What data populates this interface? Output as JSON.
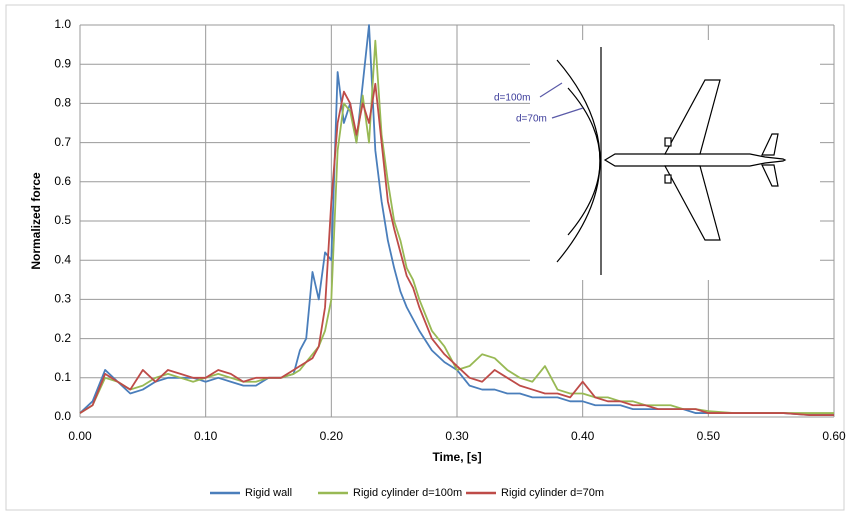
{
  "chart_data": {
    "type": "line",
    "xlabel": "Time, [s]",
    "ylabel": "Normalized force",
    "grid": true,
    "legend": "bottom",
    "annotations": [
      "d=100m",
      "d=70m"
    ],
    "xlim": [
      0,
      0.6
    ],
    "ylim": [
      0,
      1
    ],
    "xticks": [
      {
        "value": 0,
        "label": "0.00"
      },
      {
        "value": 0.1,
        "label": "0.10"
      },
      {
        "value": 0.2,
        "label": "0.20"
      },
      {
        "value": 0.3,
        "label": "0.30"
      },
      {
        "value": 0.4,
        "label": "0.40"
      },
      {
        "value": 0.5,
        "label": "0.50"
      },
      {
        "value": 0.6,
        "label": "0.60"
      }
    ],
    "yticks": [
      {
        "value": 0,
        "label": "0.0"
      },
      {
        "value": 0.1,
        "label": "0.1"
      },
      {
        "value": 0.2,
        "label": "0.2"
      },
      {
        "value": 0.3,
        "label": "0.3"
      },
      {
        "value": 0.4,
        "label": "0.4"
      },
      {
        "value": 0.5,
        "label": "0.5"
      },
      {
        "value": 0.6,
        "label": "0.6"
      },
      {
        "value": 0.7,
        "label": "0.7"
      },
      {
        "value": 0.8,
        "label": "0.8"
      },
      {
        "value": 0.9,
        "label": "0.9"
      },
      {
        "value": 1,
        "label": "1.0"
      }
    ],
    "x": [
      0,
      0.01,
      0.02,
      0.03,
      0.04,
      0.05,
      0.06,
      0.07,
      0.08,
      0.09,
      0.1,
      0.11,
      0.12,
      0.13,
      0.14,
      0.15,
      0.16,
      0.17,
      0.175,
      0.18,
      0.185,
      0.19,
      0.195,
      0.2,
      0.205,
      0.21,
      0.215,
      0.22,
      0.225,
      0.23,
      0.235,
      0.24,
      0.245,
      0.25,
      0.255,
      0.26,
      0.265,
      0.27,
      0.28,
      0.29,
      0.3,
      0.31,
      0.32,
      0.33,
      0.34,
      0.35,
      0.36,
      0.37,
      0.38,
      0.39,
      0.4,
      0.41,
      0.42,
      0.43,
      0.44,
      0.45,
      0.46,
      0.47,
      0.48,
      0.49,
      0.5,
      0.52,
      0.54,
      0.56,
      0.58,
      0.6
    ],
    "series": [
      {
        "name": "Rigid wall",
        "color": "#4a7ebb",
        "values": [
          0.01,
          0.04,
          0.12,
          0.09,
          0.06,
          0.07,
          0.09,
          0.1,
          0.1,
          0.1,
          0.09,
          0.1,
          0.09,
          0.08,
          0.08,
          0.1,
          0.1,
          0.11,
          0.17,
          0.2,
          0.37,
          0.3,
          0.42,
          0.4,
          0.88,
          0.75,
          0.8,
          0.7,
          0.85,
          1.0,
          0.68,
          0.55,
          0.45,
          0.38,
          0.32,
          0.28,
          0.25,
          0.22,
          0.17,
          0.14,
          0.12,
          0.08,
          0.07,
          0.07,
          0.06,
          0.06,
          0.05,
          0.05,
          0.05,
          0.04,
          0.04,
          0.03,
          0.03,
          0.03,
          0.02,
          0.02,
          0.02,
          0.02,
          0.02,
          0.01,
          0.01,
          0.01,
          0.01,
          0.01,
          0.005,
          0.005
        ]
      },
      {
        "name": "Rigid cylinder d=100m",
        "color": "#98b954",
        "values": [
          0.01,
          0.03,
          0.1,
          0.09,
          0.07,
          0.08,
          0.1,
          0.11,
          0.1,
          0.09,
          0.1,
          0.11,
          0.1,
          0.09,
          0.09,
          0.1,
          0.1,
          0.11,
          0.12,
          0.14,
          0.16,
          0.18,
          0.22,
          0.3,
          0.68,
          0.8,
          0.78,
          0.7,
          0.82,
          0.7,
          0.96,
          0.72,
          0.6,
          0.5,
          0.45,
          0.38,
          0.35,
          0.3,
          0.22,
          0.18,
          0.12,
          0.13,
          0.16,
          0.15,
          0.12,
          0.1,
          0.09,
          0.13,
          0.07,
          0.06,
          0.06,
          0.05,
          0.05,
          0.04,
          0.04,
          0.03,
          0.03,
          0.03,
          0.02,
          0.02,
          0.015,
          0.01,
          0.01,
          0.01,
          0.01,
          0.01
        ]
      },
      {
        "name": "Rigid cylinder d=70m",
        "color": "#be4b48",
        "values": [
          0.01,
          0.03,
          0.11,
          0.09,
          0.07,
          0.12,
          0.09,
          0.12,
          0.11,
          0.1,
          0.1,
          0.12,
          0.11,
          0.09,
          0.1,
          0.1,
          0.1,
          0.12,
          0.13,
          0.14,
          0.15,
          0.18,
          0.28,
          0.55,
          0.75,
          0.83,
          0.8,
          0.72,
          0.8,
          0.75,
          0.85,
          0.7,
          0.55,
          0.48,
          0.42,
          0.36,
          0.33,
          0.28,
          0.2,
          0.16,
          0.13,
          0.1,
          0.09,
          0.12,
          0.1,
          0.08,
          0.07,
          0.06,
          0.06,
          0.05,
          0.09,
          0.05,
          0.04,
          0.04,
          0.03,
          0.03,
          0.02,
          0.02,
          0.02,
          0.02,
          0.01,
          0.01,
          0.01,
          0.01,
          0.005,
          0.005
        ]
      }
    ]
  }
}
